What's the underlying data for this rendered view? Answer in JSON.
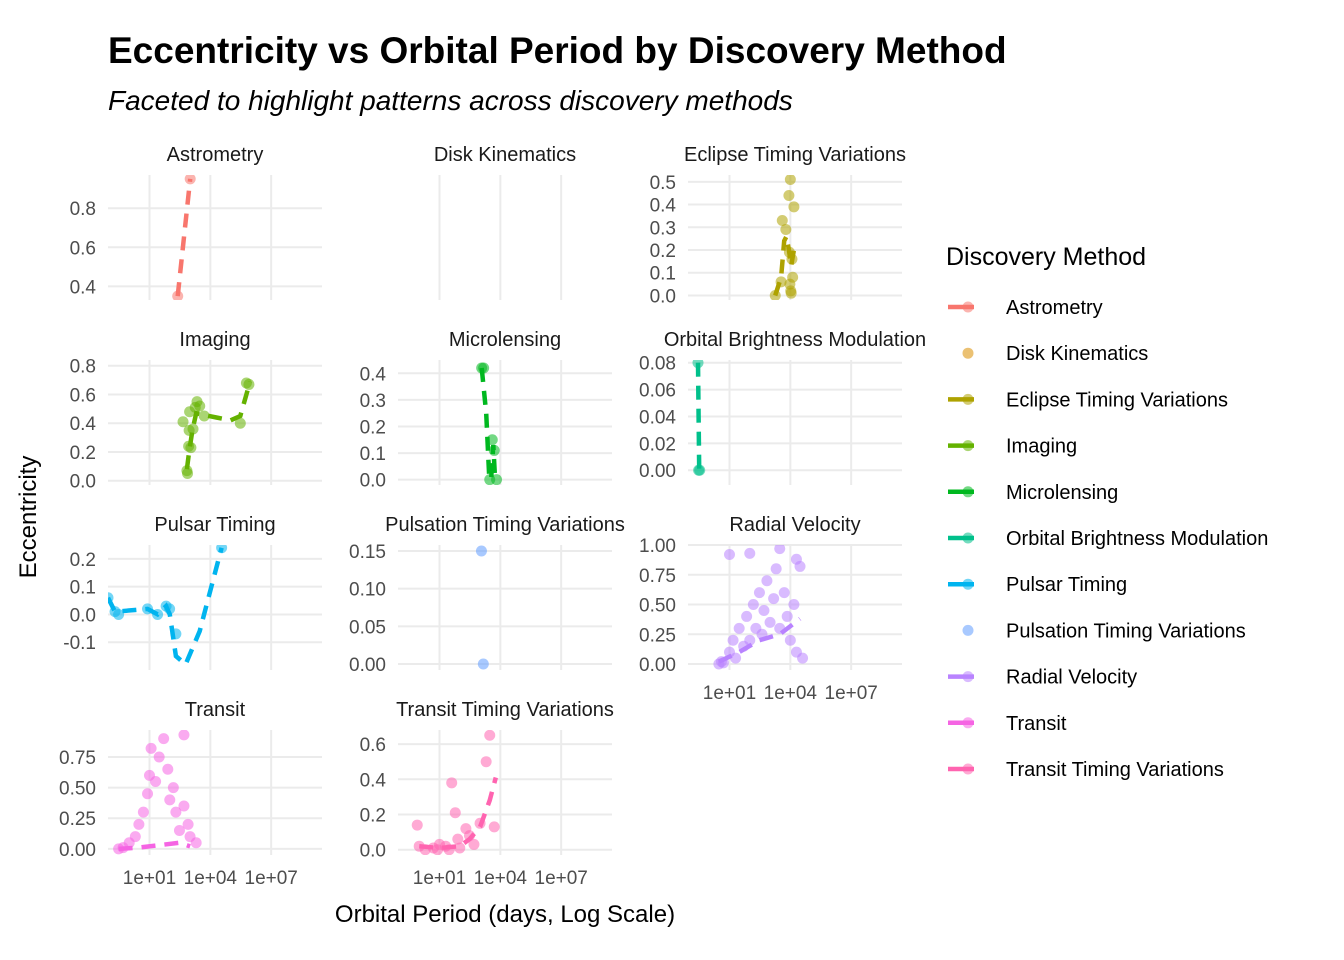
{
  "title": "Eccentricity vs Orbital Period by Discovery Method",
  "subtitle": "Faceted to highlight patterns across discovery methods",
  "chart_data": {
    "type": "scatter",
    "title": "Eccentricity vs Orbital Period by Discovery Method",
    "subtitle": "Faceted to highlight patterns across discovery methods",
    "xlabel": "Orbital Period (days, Log Scale)",
    "ylabel": "Eccentricity",
    "x_scale": "log10",
    "x_ticks": [
      10,
      10000,
      10000000
    ],
    "x_tick_labels": [
      "1e+01",
      "1e+04",
      "1e+07"
    ],
    "xlim": [
      0.09,
      3200000000.0
    ],
    "legend": {
      "title": "Discovery Method",
      "position": "right"
    },
    "grid": true,
    "smoothing_line": "dashed",
    "facets": [
      {
        "name": "Astrometry",
        "color": "#F8766D",
        "ylim": [
          0.33,
          0.97
        ],
        "y_ticks": [
          0.4,
          0.6,
          0.8
        ],
        "y_tick_labels": [
          "0.4",
          "0.6",
          "0.8"
        ],
        "points": [
          [
            246,
            0.35
          ],
          [
            1016,
            0.95
          ]
        ],
        "trend": [
          [
            246,
            0.35
          ],
          [
            1016,
            0.95
          ]
        ]
      },
      {
        "name": "Disk Kinematics",
        "color": "#DB8E00",
        "ylim": [
          0,
          1
        ],
        "y_ticks": [],
        "y_tick_labels": [],
        "points": [],
        "trend": []
      },
      {
        "name": "Eclipse Timing Variations",
        "color": "#AEA200",
        "ylim": [
          -0.02,
          0.53
        ],
        "y_ticks": [
          0,
          0.1,
          0.2,
          0.3,
          0.4,
          0.5
        ],
        "y_tick_labels": [
          "0.0",
          "0.1",
          "0.2",
          "0.3",
          "0.4",
          "0.5"
        ],
        "points": [
          [
            1800,
            0.0
          ],
          [
            3500,
            0.06
          ],
          [
            4000,
            0.33
          ],
          [
            6000,
            0.29
          ],
          [
            8500,
            0.44
          ],
          [
            10000,
            0.51
          ],
          [
            15000,
            0.39
          ],
          [
            9000,
            0.19
          ],
          [
            12000,
            0.16
          ],
          [
            13000,
            0.08
          ],
          [
            9500,
            0.05
          ],
          [
            11000,
            0.01
          ],
          [
            10500,
            0.02
          ]
        ],
        "trend": [
          [
            1800,
            0.0
          ],
          [
            3500,
            0.08
          ],
          [
            5000,
            0.24
          ],
          [
            6500,
            0.26
          ],
          [
            8500,
            0.2
          ],
          [
            11000,
            0.13
          ],
          [
            15000,
            0.2
          ]
        ]
      },
      {
        "name": "Imaging",
        "color": "#64B200",
        "ylim": [
          -0.03,
          0.84
        ],
        "y_ticks": [
          0,
          0.2,
          0.4,
          0.6,
          0.8
        ],
        "y_tick_labels": [
          "0.0",
          "0.2",
          "0.4",
          "0.6",
          "0.8"
        ],
        "points": [
          [
            450,
            0.41
          ],
          [
            700,
            0.07
          ],
          [
            750,
            0.05
          ],
          [
            850,
            0.24
          ],
          [
            900,
            0.35
          ],
          [
            950,
            0.48
          ],
          [
            1100,
            0.23
          ],
          [
            1400,
            0.36
          ],
          [
            1800,
            0.51
          ],
          [
            2200,
            0.55
          ],
          [
            3000,
            0.52
          ],
          [
            5000,
            0.45
          ],
          [
            300000,
            0.4
          ],
          [
            600000,
            0.68
          ],
          [
            800000,
            0.67
          ]
        ],
        "trend": [
          [
            700,
            0.08
          ],
          [
            900,
            0.2
          ],
          [
            1300,
            0.35
          ],
          [
            2000,
            0.47
          ],
          [
            4000,
            0.46
          ],
          [
            20000,
            0.44
          ],
          [
            100000,
            0.42
          ],
          [
            300000,
            0.45
          ],
          [
            600000,
            0.6
          ],
          [
            900000,
            0.69
          ]
        ]
      },
      {
        "name": "Microlensing",
        "color": "#00B81F",
        "ylim": [
          -0.02,
          0.45
        ],
        "y_ticks": [
          0,
          0.1,
          0.2,
          0.3,
          0.4
        ],
        "y_tick_labels": [
          "0.0",
          "0.1",
          "0.2",
          "0.3",
          "0.4"
        ],
        "points": [
          [
            1200,
            0.42
          ],
          [
            1500,
            0.42
          ],
          [
            3000,
            0.0
          ],
          [
            4000,
            0.15
          ],
          [
            5000,
            0.11
          ],
          [
            6500,
            0.0
          ]
        ],
        "trend": [
          [
            1200,
            0.42
          ],
          [
            2000,
            0.25
          ],
          [
            2800,
            0.02
          ],
          [
            3500,
            0.0
          ],
          [
            4500,
            0.13
          ],
          [
            5500,
            0.0
          ]
        ]
      },
      {
        "name": "Orbital Brightness Modulation",
        "color": "#00C08B",
        "ylim": [
          -0.011,
          0.082
        ],
        "y_ticks": [
          0,
          0.02,
          0.04,
          0.06,
          0.08
        ],
        "y_tick_labels": [
          "0.00",
          "0.02",
          "0.04",
          "0.06",
          "0.08"
        ],
        "points": [
          [
            0.28,
            0.08
          ],
          [
            0.3,
            0.0
          ],
          [
            0.34,
            0.0
          ]
        ],
        "trend": [
          [
            0.28,
            0.08
          ],
          [
            0.32,
            0.0
          ]
        ]
      },
      {
        "name": "Pulsar Timing",
        "color": "#00B4EF",
        "ylim": [
          -0.2,
          0.25
        ],
        "y_ticks": [
          -0.1,
          0,
          0.1,
          0.2
        ],
        "y_tick_labels": [
          "-0.1",
          "0.0",
          "0.1",
          "0.2"
        ],
        "points": [
          [
            0.09,
            0.06
          ],
          [
            0.2,
            0.01
          ],
          [
            0.3,
            0.0
          ],
          [
            8,
            0.02
          ],
          [
            25,
            0.0
          ],
          [
            66,
            0.03
          ],
          [
            98,
            0.02
          ],
          [
            200,
            -0.07
          ],
          [
            36000,
            0.24
          ]
        ],
        "trend": [
          [
            0.09,
            0.06
          ],
          [
            0.2,
            0.01
          ],
          [
            8,
            0.02
          ],
          [
            25,
            0.0
          ],
          [
            66,
            0.03
          ],
          [
            100,
            0.0
          ],
          [
            200,
            -0.15
          ],
          [
            600,
            -0.18
          ],
          [
            3000,
            -0.06
          ],
          [
            36000,
            0.24
          ]
        ]
      },
      {
        "name": "Pulsation Timing Variations",
        "color": "#619CFF",
        "ylim": [
          -0.008,
          0.158
        ],
        "y_ticks": [
          0,
          0.05,
          0.1,
          0.15
        ],
        "y_tick_labels": [
          "0.00",
          "0.05",
          "0.10",
          "0.15"
        ],
        "points": [
          [
            1170,
            0.15
          ],
          [
            1450,
            0.0
          ]
        ],
        "trend": []
      },
      {
        "name": "Radial Velocity",
        "color": "#B983FF",
        "ylim": [
          -0.05,
          1.0
        ],
        "y_ticks": [
          0,
          0.25,
          0.5,
          0.75,
          1.0
        ],
        "y_tick_labels": [
          "0.00",
          "0.25",
          "0.50",
          "0.75",
          "1.00"
        ],
        "points": [
          [
            3,
            0.0
          ],
          [
            4,
            0.02
          ],
          [
            5,
            0.01
          ],
          [
            10,
            0.1
          ],
          [
            15,
            0.2
          ],
          [
            20,
            0.05
          ],
          [
            30,
            0.3
          ],
          [
            50,
            0.15
          ],
          [
            70,
            0.4
          ],
          [
            100,
            0.2
          ],
          [
            150,
            0.5
          ],
          [
            200,
            0.3
          ],
          [
            300,
            0.6
          ],
          [
            400,
            0.25
          ],
          [
            500,
            0.45
          ],
          [
            700,
            0.7
          ],
          [
            1000,
            0.35
          ],
          [
            1500,
            0.55
          ],
          [
            2000,
            0.8
          ],
          [
            3000,
            0.3
          ],
          [
            5000,
            0.6
          ],
          [
            7000,
            0.4
          ],
          [
            10000,
            0.2
          ],
          [
            15000,
            0.5
          ],
          [
            20000,
            0.1
          ],
          [
            40000,
            0.05
          ],
          [
            10,
            0.92
          ],
          [
            100,
            0.93
          ],
          [
            3000,
            0.97
          ],
          [
            20000,
            0.88
          ],
          [
            30000,
            0.82
          ]
        ],
        "trend": [
          [
            3,
            0.02
          ],
          [
            30,
            0.1
          ],
          [
            300,
            0.2
          ],
          [
            3000,
            0.25
          ],
          [
            30000,
            0.38
          ]
        ]
      },
      {
        "name": "Transit",
        "color": "#F564E3",
        "ylim": [
          -0.05,
          0.97
        ],
        "y_ticks": [
          0,
          0.25,
          0.5,
          0.75
        ],
        "y_tick_labels": [
          "0.00",
          "0.25",
          "0.50",
          "0.75"
        ],
        "points": [
          [
            0.3,
            0.0
          ],
          [
            0.5,
            0.01
          ],
          [
            1,
            0.05
          ],
          [
            2,
            0.1
          ],
          [
            3,
            0.2
          ],
          [
            5,
            0.3
          ],
          [
            8,
            0.45
          ],
          [
            10,
            0.6
          ],
          [
            12,
            0.82
          ],
          [
            20,
            0.55
          ],
          [
            30,
            0.75
          ],
          [
            50,
            0.9
          ],
          [
            80,
            0.65
          ],
          [
            100,
            0.4
          ],
          [
            150,
            0.5
          ],
          [
            200,
            0.3
          ],
          [
            300,
            0.15
          ],
          [
            500,
            0.35
          ],
          [
            800,
            0.2
          ],
          [
            1000,
            0.1
          ],
          [
            2000,
            0.05
          ],
          [
            500,
            0.93
          ]
        ],
        "trend": [
          [
            0.3,
            0.0
          ],
          [
            3,
            0.01
          ],
          [
            30,
            0.03
          ],
          [
            300,
            0.05
          ],
          [
            1000,
            0.02
          ]
        ]
      },
      {
        "name": "Transit Timing Variations",
        "color": "#FF64B0",
        "ylim": [
          -0.03,
          0.68
        ],
        "y_ticks": [
          0,
          0.2,
          0.4,
          0.6
        ],
        "y_tick_labels": [
          "0.0",
          "0.2",
          "0.4",
          "0.6"
        ],
        "points": [
          [
            0.8,
            0.14
          ],
          [
            1,
            0.02
          ],
          [
            2,
            0.0
          ],
          [
            5,
            0.01
          ],
          [
            10,
            0.03
          ],
          [
            20,
            0.02
          ],
          [
            40,
            0.38
          ],
          [
            60,
            0.21
          ],
          [
            80,
            0.06
          ],
          [
            100,
            0.01
          ],
          [
            200,
            0.12
          ],
          [
            300,
            0.08
          ],
          [
            500,
            0.03
          ],
          [
            1000,
            0.15
          ],
          [
            2000,
            0.5
          ],
          [
            3000,
            0.65
          ],
          [
            5000,
            0.13
          ],
          [
            30,
            0.0
          ],
          [
            8,
            0.0
          ]
        ],
        "trend": [
          [
            1,
            0.02
          ],
          [
            10,
            0.01
          ],
          [
            100,
            0.02
          ],
          [
            300,
            0.06
          ],
          [
            1000,
            0.13
          ],
          [
            3000,
            0.28
          ],
          [
            6000,
            0.41
          ]
        ]
      }
    ]
  }
}
